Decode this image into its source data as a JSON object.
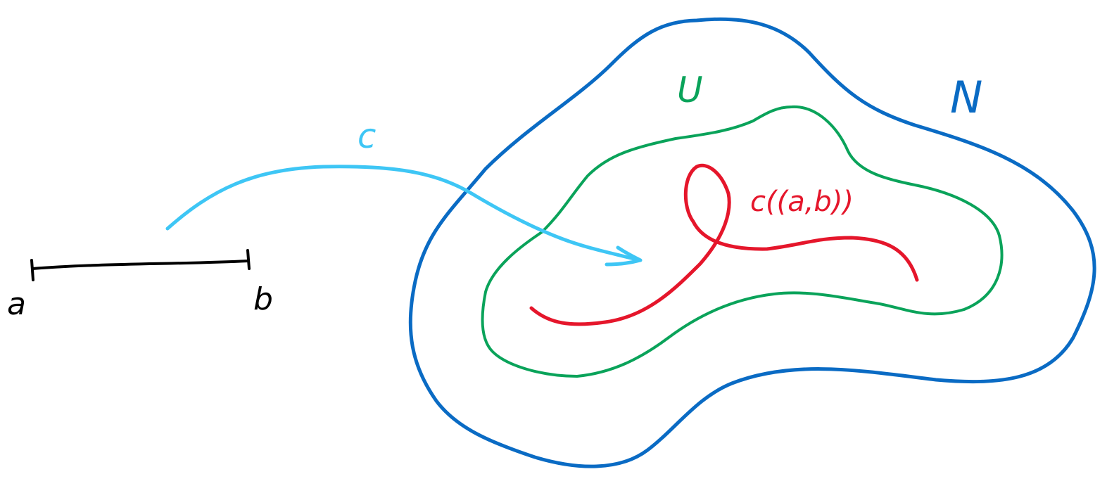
{
  "labels": {
    "interval_start": "a",
    "interval_end": "b",
    "map": "c",
    "open_set": "U",
    "manifold": "N",
    "image": "c((a,b))"
  },
  "colors": {
    "interval": "#000000",
    "map_arrow": "#3ec6f5",
    "manifold": "#0a6bc4",
    "open_set": "#0aa35a",
    "image_curve": "#e5162b"
  }
}
